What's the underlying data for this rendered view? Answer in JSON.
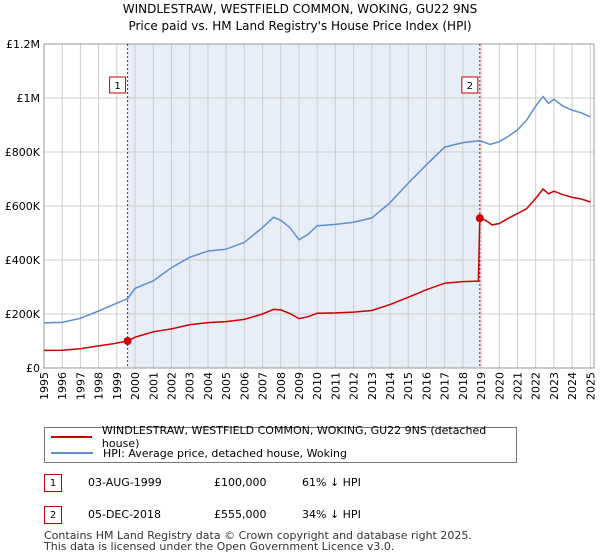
{
  "chart_data": {
    "type": "line",
    "title": "WINDLESTRAW, WESTFIELD COMMON, WOKING, GU22 9NS",
    "subtitle": "Price paid vs. HM Land Registry's House Price Index (HPI)",
    "xlabel": "",
    "ylabel": "",
    "xlim": [
      1995,
      2025.2
    ],
    "ylim": [
      0,
      1200000
    ],
    "y_ticks": [
      {
        "value": 0,
        "label": "£0"
      },
      {
        "value": 200000,
        "label": "£200K"
      },
      {
        "value": 400000,
        "label": "£400K"
      },
      {
        "value": 600000,
        "label": "£600K"
      },
      {
        "value": 800000,
        "label": "£800K"
      },
      {
        "value": 1000000,
        "label": "£1M"
      },
      {
        "value": 1200000,
        "label": "£1.2M"
      }
    ],
    "x_ticks": [
      "1995",
      "1996",
      "1997",
      "1998",
      "1999",
      "2000",
      "2001",
      "2002",
      "2003",
      "2004",
      "2005",
      "2006",
      "2007",
      "2008",
      "2009",
      "2010",
      "2011",
      "2012",
      "2013",
      "2014",
      "2015",
      "2016",
      "2017",
      "2018",
      "2019",
      "2020",
      "2021",
      "2022",
      "2023",
      "2024",
      "2025"
    ],
    "shade_range": [
      1999.59,
      2018.93
    ],
    "series": [
      {
        "name": "WINDLESTRAW, WESTFIELD COMMON, WOKING, GU22 9NS (detached house)",
        "color": "#cc0000",
        "points": [
          [
            1995.0,
            65000
          ],
          [
            1996.0,
            66000
          ],
          [
            1997.0,
            71000
          ],
          [
            1998.0,
            82000
          ],
          [
            1998.8,
            90000
          ],
          [
            1999.59,
            100000
          ],
          [
            2000.0,
            114000
          ],
          [
            2000.5,
            124000
          ],
          [
            2001.0,
            134000
          ],
          [
            2002.0,
            145000
          ],
          [
            2003.0,
            160000
          ],
          [
            2004.0,
            168000
          ],
          [
            2005.0,
            172000
          ],
          [
            2006.0,
            180000
          ],
          [
            2007.0,
            200000
          ],
          [
            2007.6,
            217000
          ],
          [
            2008.0,
            215000
          ],
          [
            2008.5,
            202000
          ],
          [
            2009.0,
            183000
          ],
          [
            2009.5,
            190000
          ],
          [
            2010.0,
            203000
          ],
          [
            2011.0,
            204000
          ],
          [
            2012.0,
            207000
          ],
          [
            2013.0,
            213000
          ],
          [
            2014.0,
            235000
          ],
          [
            2015.0,
            262000
          ],
          [
            2016.0,
            290000
          ],
          [
            2017.0,
            314000
          ],
          [
            2018.0,
            320000
          ],
          [
            2018.85,
            322000
          ],
          [
            2018.93,
            555000
          ],
          [
            2019.3,
            545000
          ],
          [
            2019.6,
            530000
          ],
          [
            2020.0,
            535000
          ],
          [
            2020.5,
            555000
          ],
          [
            2021.0,
            572000
          ],
          [
            2021.5,
            590000
          ],
          [
            2022.0,
            628000
          ],
          [
            2022.4,
            663000
          ],
          [
            2022.7,
            645000
          ],
          [
            2023.0,
            655000
          ],
          [
            2023.5,
            642000
          ],
          [
            2024.0,
            632000
          ],
          [
            2024.5,
            626000
          ],
          [
            2025.0,
            615000
          ]
        ]
      },
      {
        "name": "HPI: Average price, detached house, Woking",
        "color": "#5b8fd0",
        "points": [
          [
            1995.0,
            167000
          ],
          [
            1996.0,
            169000
          ],
          [
            1997.0,
            184000
          ],
          [
            1998.0,
            211000
          ],
          [
            1999.0,
            240000
          ],
          [
            1999.59,
            257000
          ],
          [
            2000.0,
            295000
          ],
          [
            2001.0,
            323000
          ],
          [
            2002.0,
            372000
          ],
          [
            2003.0,
            410000
          ],
          [
            2004.0,
            433000
          ],
          [
            2005.0,
            440000
          ],
          [
            2006.0,
            465000
          ],
          [
            2007.0,
            520000
          ],
          [
            2007.6,
            558000
          ],
          [
            2008.0,
            547000
          ],
          [
            2008.5,
            520000
          ],
          [
            2009.0,
            475000
          ],
          [
            2009.5,
            495000
          ],
          [
            2010.0,
            527000
          ],
          [
            2011.0,
            532000
          ],
          [
            2012.0,
            540000
          ],
          [
            2013.0,
            556000
          ],
          [
            2014.0,
            612000
          ],
          [
            2015.0,
            685000
          ],
          [
            2016.0,
            753000
          ],
          [
            2017.0,
            818000
          ],
          [
            2018.0,
            835000
          ],
          [
            2018.93,
            842000
          ],
          [
            2019.5,
            828000
          ],
          [
            2020.0,
            838000
          ],
          [
            2020.5,
            858000
          ],
          [
            2021.0,
            882000
          ],
          [
            2021.5,
            918000
          ],
          [
            2022.0,
            970000
          ],
          [
            2022.4,
            1005000
          ],
          [
            2022.7,
            980000
          ],
          [
            2023.0,
            995000
          ],
          [
            2023.5,
            970000
          ],
          [
            2024.0,
            955000
          ],
          [
            2024.5,
            945000
          ],
          [
            2025.0,
            930000
          ]
        ]
      }
    ],
    "sales": [
      {
        "label": "1",
        "x": 1999.59,
        "price": 100000
      },
      {
        "label": "2",
        "x": 2018.93,
        "price": 555000
      }
    ]
  },
  "legend": {
    "property": "WINDLESTRAW, WESTFIELD COMMON, WOKING, GU22 9NS (detached house)",
    "hpi": "HPI: Average price, detached house, Woking"
  },
  "sales_table": [
    {
      "num": "1",
      "date": "03-AUG-1999",
      "price": "£100,000",
      "hpi": "61% ↓ HPI"
    },
    {
      "num": "2",
      "date": "05-DEC-2018",
      "price": "£555,000",
      "hpi": "34% ↓ HPI"
    }
  ],
  "footer": {
    "line1": "Contains HM Land Registry data © Crown copyright and database right 2025.",
    "line2": "This data is licensed under the Open Government Licence v3.0."
  },
  "colors": {
    "property": "#cc0000",
    "hpi": "#5b8fd0",
    "shade": "#e8eef8",
    "grid": "#cccccc"
  }
}
